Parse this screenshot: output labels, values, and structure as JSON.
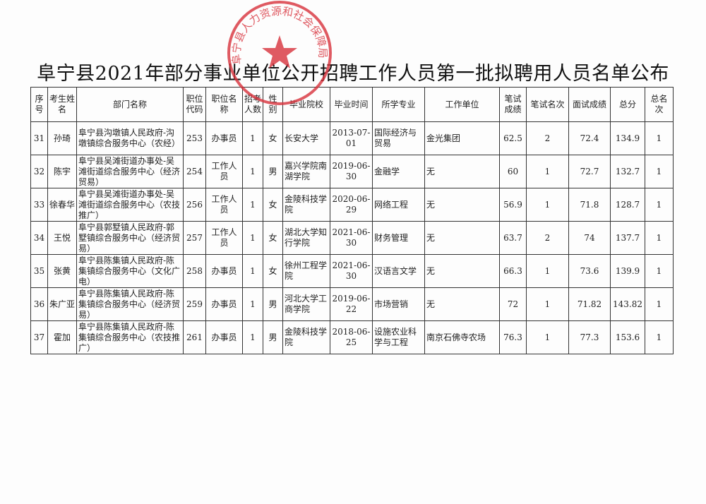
{
  "title": "阜宁县2021年部分事业单位公开招聘工作人员第一批拟聘用人员名单公布",
  "seal": {
    "text": "阜宁县人力资源和社会保障局",
    "color": "#d8323c",
    "icon": "star-icon"
  },
  "columns": [
    "序号",
    "考生姓名",
    "部门名称",
    "职位代码",
    "职位名称",
    "招考人数",
    "性别",
    "毕业院校",
    "毕业时间",
    "所学专业",
    "工作单位",
    "笔试成绩",
    "笔试名次",
    "面试成绩",
    "总分",
    "总名次"
  ],
  "rows": [
    [
      "31",
      "孙琦",
      "阜宁县沟墩镇人民政府-沟墩镇综合服务中心（农经）",
      "253",
      "办事员",
      "1",
      "女",
      "长安大学",
      "2013-07-01",
      "国际经济与贸易",
      "金光集团",
      "62.5",
      "2",
      "72.4",
      "134.9",
      "1"
    ],
    [
      "32",
      "陈宇",
      "阜宁县吴滩街道办事处-吴滩街道综合服务中心（经济贸易）",
      "254",
      "工作人员",
      "1",
      "男",
      "嘉兴学院南湖学院",
      "2019-06-30",
      "金融学",
      "无",
      "60",
      "1",
      "72.7",
      "132.7",
      "1"
    ],
    [
      "33",
      "徐春华",
      "阜宁县吴滩街道办事处-吴滩街道综合服务中心（农技推广）",
      "256",
      "工作人员",
      "1",
      "女",
      "金陵科技学院",
      "2020-06-29",
      "网络工程",
      "无",
      "56.9",
      "1",
      "71.8",
      "128.7",
      "1"
    ],
    [
      "34",
      "王悦",
      "阜宁县郭墅镇人民政府-郭墅镇综合服务中心（经济贸易）",
      "257",
      "工作人员",
      "1",
      "女",
      "湖北大学知行学院",
      "2021-06-30",
      "财务管理",
      "无",
      "63.7",
      "2",
      "74",
      "137.7",
      "1"
    ],
    [
      "35",
      "张黄",
      "阜宁县陈集镇人民政府-陈集镇综合服务中心（文化广电）",
      "258",
      "办事员",
      "1",
      "女",
      "徐州工程学院",
      "2021-06-30",
      "汉语言文学",
      "无",
      "66.3",
      "1",
      "73.6",
      "139.9",
      "1"
    ],
    [
      "36",
      "朱广亚",
      "阜宁县陈集镇人民政府-陈集镇综合服务中心（经济贸易）",
      "259",
      "办事员",
      "1",
      "男",
      "河北大学工商学院",
      "2019-06-22",
      "市场营销",
      "无",
      "72",
      "1",
      "71.82",
      "143.82",
      "1"
    ],
    [
      "37",
      "霍加",
      "阜宁县陈集镇人民政府-陈集镇综合服务中心（农技推广）",
      "261",
      "办事员",
      "1",
      "男",
      "金陵科技学院",
      "2018-06-25",
      "设施农业科学与工程",
      "南京石佛寺农场",
      "76.3",
      "1",
      "77.3",
      "153.6",
      "1"
    ]
  ]
}
